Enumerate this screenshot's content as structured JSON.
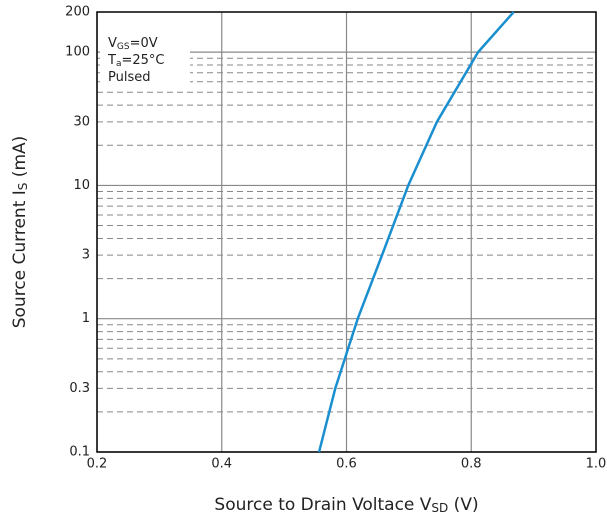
{
  "chart_data": {
    "type": "line",
    "x_label": {
      "main": "Source to Drain Voltace  V",
      "sub": "SD",
      "rest": " (V)"
    },
    "y_label": {
      "main": "Source Current  I",
      "sub": "S",
      "rest": "  (mA)"
    },
    "annotations": [
      {
        "main": "V",
        "sub": "GS",
        "rest": "=0V"
      },
      {
        "main": "T",
        "sub": "a",
        "rest": "=25°C"
      },
      {
        "main": "Pulsed",
        "sub": "",
        "rest": ""
      }
    ],
    "x": [
      0.556,
      0.582,
      0.618,
      0.657,
      0.699,
      0.745,
      0.811,
      0.868
    ],
    "values": [
      0.1,
      0.3,
      1,
      3,
      10,
      30,
      100,
      200
    ],
    "color": "#1a8fd0",
    "xlim": [
      0.2,
      1.0
    ],
    "xticks": [
      0.2,
      0.4,
      0.6,
      0.8,
      {
        "value": 1.0,
        "label": "1.0"
      }
    ],
    "ylim": [
      0.1,
      200
    ],
    "yticks": [
      0.1,
      0.3,
      1,
      3,
      10,
      30,
      100,
      200
    ],
    "yminor": [
      0.2,
      0.4,
      0.5,
      0.6,
      0.7,
      0.8,
      0.9,
      2,
      4,
      5,
      6,
      7,
      8,
      9,
      20,
      40,
      50,
      60,
      70,
      80,
      90
    ],
    "ylog": true,
    "grid": true
  }
}
